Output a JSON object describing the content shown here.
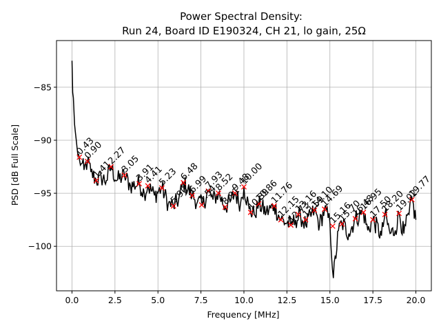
{
  "chart_data": {
    "type": "line",
    "title_line1": "Power Spectral Density:",
    "title_line2": "Run 24, Board ID E190324, CH 21, lo gain, 25Ω",
    "xlabel": "Frequency [MHz]",
    "ylabel": "PSD [dB Full Scale]",
    "xlim": [
      -0.9,
      20.9
    ],
    "ylim": [
      -104.2,
      -80.6
    ],
    "xticks": [
      0.0,
      2.5,
      5.0,
      7.5,
      10.0,
      12.5,
      15.0,
      17.5,
      20.0
    ],
    "xtick_labels": [
      "0.0",
      "2.5",
      "5.0",
      "7.5",
      "10.0",
      "12.5",
      "15.0",
      "17.5",
      "20.0"
    ],
    "yticks": [
      -85,
      -90,
      -95,
      -100
    ],
    "ytick_labels": [
      "−85",
      "−90",
      "−95",
      "−100"
    ],
    "grid": true,
    "line_color": "#000000",
    "marker_color": "#ff0000",
    "series_anchors": [
      [
        0.0,
        -82.5
      ],
      [
        0.04,
        -85.5
      ],
      [
        0.08,
        -86.0
      ],
      [
        0.15,
        -88.5
      ],
      [
        0.25,
        -90.0
      ],
      [
        0.35,
        -91.5
      ],
      [
        0.43,
        -91.8
      ],
      [
        0.55,
        -92.2
      ],
      [
        0.7,
        -92.8
      ],
      [
        0.9,
        -92.0
      ],
      [
        1.1,
        -93.0
      ],
      [
        1.41,
        -93.8
      ],
      [
        1.7,
        -93.5
      ],
      [
        2.0,
        -93.8
      ],
      [
        2.27,
        -92.5
      ],
      [
        2.6,
        -93.8
      ],
      [
        3.05,
        -93.3
      ],
      [
        3.4,
        -94.3
      ],
      [
        3.91,
        -94.1
      ],
      [
        4.2,
        -95.0
      ],
      [
        4.41,
        -94.3
      ],
      [
        4.8,
        -95.2
      ],
      [
        5.23,
        -94.5
      ],
      [
        5.6,
        -96.0
      ],
      [
        5.9,
        -96.2
      ],
      [
        6.2,
        -95.6
      ],
      [
        6.48,
        -94.0
      ],
      [
        6.99,
        -95.2
      ],
      [
        7.3,
        -95.8
      ],
      [
        7.6,
        -96.1
      ],
      [
        7.93,
        -94.8
      ],
      [
        8.2,
        -95.6
      ],
      [
        8.52,
        -95.0
      ],
      [
        8.91,
        -96.3
      ],
      [
        9.2,
        -95.8
      ],
      [
        9.48,
        -95.0
      ],
      [
        9.8,
        -96.0
      ],
      [
        10.0,
        -94.4
      ],
      [
        10.3,
        -96.5
      ],
      [
        10.6,
        -97.0
      ],
      [
        10.86,
        -96.0
      ],
      [
        11.3,
        -96.8
      ],
      [
        11.76,
        -96.2
      ],
      [
        12.15,
        -97.5
      ],
      [
        12.5,
        -97.8
      ],
      [
        12.73,
        -98.0
      ],
      [
        13.0,
        -97.5
      ],
      [
        13.3,
        -97.2
      ],
      [
        13.6,
        -98.0
      ],
      [
        14.1,
        -96.6
      ],
      [
        14.4,
        -98.0
      ],
      [
        14.69,
        -96.5
      ],
      [
        15.0,
        -97.8
      ],
      [
        15.2,
        -103.0
      ],
      [
        15.5,
        -98.5
      ],
      [
        15.7,
        -97.8
      ],
      [
        16.1,
        -98.8
      ],
      [
        16.48,
        -97.4
      ],
      [
        16.95,
        -96.8
      ],
      [
        17.2,
        -98.5
      ],
      [
        17.5,
        -97.5
      ],
      [
        18.0,
        -99.0
      ],
      [
        18.2,
        -97.0
      ],
      [
        18.5,
        -98.8
      ],
      [
        18.8,
        -98.5
      ],
      [
        19.02,
        -96.9
      ],
      [
        19.3,
        -98.8
      ],
      [
        19.6,
        -97.0
      ],
      [
        19.77,
        -95.6
      ],
      [
        20.0,
        -97.5
      ]
    ],
    "peaks": [
      {
        "x": 0.43,
        "y": -91.6,
        "label": "0.43"
      },
      {
        "x": 0.9,
        "y": -92.0,
        "label": "0.90"
      },
      {
        "x": 1.41,
        "y": -93.8,
        "label": "1.41"
      },
      {
        "x": 2.27,
        "y": -92.5,
        "label": "2.27"
      },
      {
        "x": 3.05,
        "y": -93.3,
        "label": "3.05"
      },
      {
        "x": 3.91,
        "y": -94.1,
        "label": "3.91"
      },
      {
        "x": 4.41,
        "y": -94.3,
        "label": "4.41"
      },
      {
        "x": 5.23,
        "y": -94.5,
        "label": "5.23"
      },
      {
        "x": 5.9,
        "y": -96.2,
        "label": "5.90"
      },
      {
        "x": 6.48,
        "y": -94.0,
        "label": "6.48"
      },
      {
        "x": 6.99,
        "y": -95.2,
        "label": "6.99"
      },
      {
        "x": 7.54,
        "y": -96.1,
        "label": "7.54"
      },
      {
        "x": 7.93,
        "y": -94.8,
        "label": "7.93"
      },
      {
        "x": 8.52,
        "y": -95.0,
        "label": "8.52"
      },
      {
        "x": 8.91,
        "y": -96.3,
        "label": "8.91"
      },
      {
        "x": 9.48,
        "y": -95.0,
        "label": "9.48"
      },
      {
        "x": 10.0,
        "y": -94.4,
        "label": "10.00"
      },
      {
        "x": 10.39,
        "y": -96.8,
        "label": "10.39"
      },
      {
        "x": 10.86,
        "y": -96.0,
        "label": "10.86"
      },
      {
        "x": 11.76,
        "y": -96.2,
        "label": "11.76"
      },
      {
        "x": 12.15,
        "y": -97.5,
        "label": "12.15"
      },
      {
        "x": 12.73,
        "y": -98.0,
        "label": "12.73"
      },
      {
        "x": 13.16,
        "y": -97.0,
        "label": "13.16"
      },
      {
        "x": 13.59,
        "y": -97.5,
        "label": "13.59"
      },
      {
        "x": 14.1,
        "y": -96.6,
        "label": "14.10"
      },
      {
        "x": 14.69,
        "y": -96.5,
        "label": "14.69"
      },
      {
        "x": 15.16,
        "y": -98.1,
        "label": "15.16"
      },
      {
        "x": 15.7,
        "y": -97.9,
        "label": "15.70"
      },
      {
        "x": 16.48,
        "y": -97.4,
        "label": "16.48"
      },
      {
        "x": 16.95,
        "y": -96.8,
        "label": "16.95"
      },
      {
        "x": 17.5,
        "y": -97.5,
        "label": "17.50"
      },
      {
        "x": 18.2,
        "y": -97.0,
        "label": "18.20"
      },
      {
        "x": 19.02,
        "y": -96.9,
        "label": "19.02"
      },
      {
        "x": 19.77,
        "y": -95.6,
        "label": "19.77"
      }
    ]
  }
}
